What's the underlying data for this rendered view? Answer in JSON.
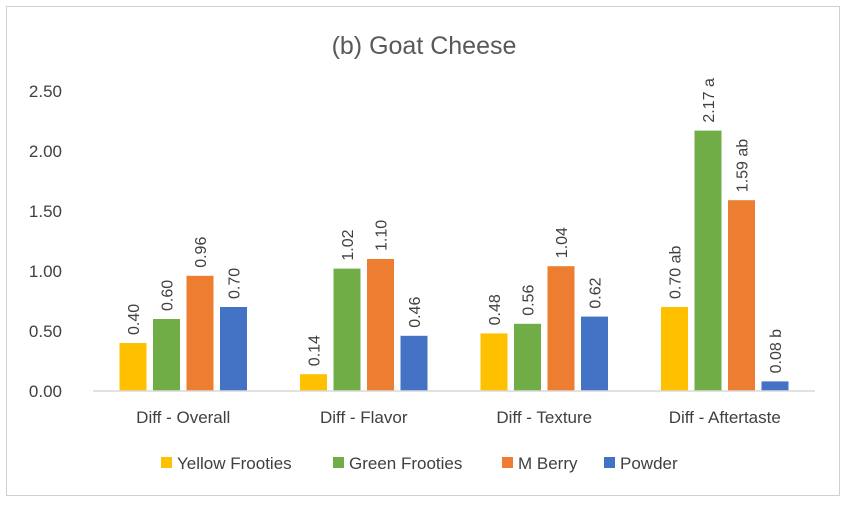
{
  "chart_data": {
    "type": "bar",
    "title": "(b) Goat Cheese",
    "categories": [
      "Diff - Overall",
      "Diff - Flavor",
      "Diff - Texture",
      "Diff - Aftertaste"
    ],
    "ylim": [
      0,
      2.5
    ],
    "yticks": [
      "0.00",
      "0.50",
      "1.00",
      "1.50",
      "2.00",
      "2.50"
    ],
    "grid": false,
    "legend_position": "bottom",
    "series": [
      {
        "name": "Yellow Frooties",
        "color": "#FFC000",
        "values": [
          0.4,
          0.14,
          0.48,
          0.7
        ],
        "labels": [
          "0.40",
          "0.14",
          "0.48",
          "0.70 ab"
        ]
      },
      {
        "name": "Green Frooties",
        "color": "#70AD47",
        "values": [
          0.6,
          1.02,
          0.56,
          2.17
        ],
        "labels": [
          "0.60",
          "1.02",
          "0.56",
          "2.17 a"
        ]
      },
      {
        "name": "M Berry",
        "color": "#ED7D31",
        "values": [
          0.96,
          1.1,
          1.04,
          1.59
        ],
        "labels": [
          "0.96",
          "1.10",
          "1.04",
          "1.59 ab"
        ]
      },
      {
        "name": "Powder",
        "color": "#4472C4",
        "values": [
          0.7,
          0.46,
          0.62,
          0.08
        ],
        "labels": [
          "0.70",
          "0.46",
          "0.62",
          "0.08 b"
        ]
      }
    ]
  }
}
